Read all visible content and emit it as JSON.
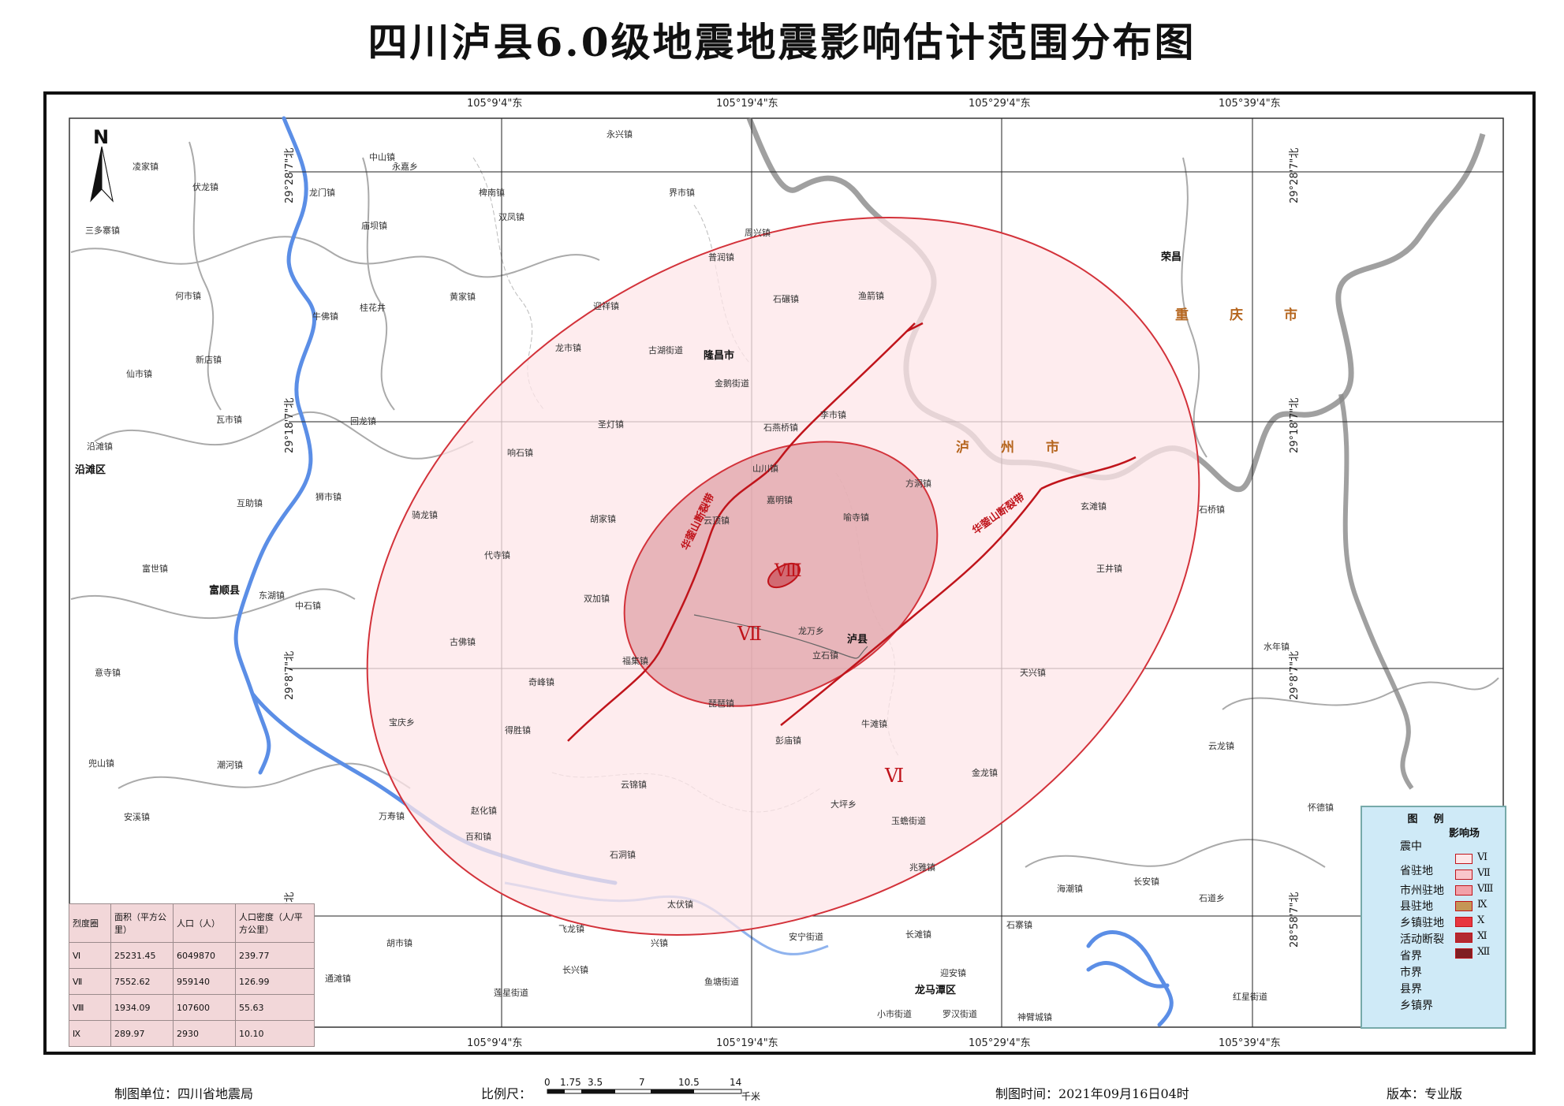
{
  "title": "四川泸县6.0级地震地震影响估计范围分布图",
  "north_label": "N",
  "coords": {
    "top": [
      "105°9'4\"东",
      "105°19'4\"东",
      "105°29'4\"东",
      "105°39'4\"东"
    ],
    "bottom": [
      "105°9'4\"东",
      "105°19'4\"东",
      "105°29'4\"东",
      "105°39'4\"东"
    ],
    "left": [
      "29°28'7\"北",
      "29°18'7\"北",
      "29°8'7\"北",
      "28°58'7\"北"
    ],
    "right": [
      "29°28'7\"北",
      "29°18'7\"北",
      "29°8'7\"北",
      "28°58'7\"北"
    ]
  },
  "places": {
    "towns": [
      "中山镇",
      "永兴镇",
      "凌家镇",
      "伏龙镇",
      "龙门镇",
      "椑南镇",
      "界市镇",
      "永嘉乡",
      "三多寨镇",
      "双凤镇",
      "庙坝镇",
      "周兴镇",
      "普润镇",
      "何市镇",
      "黄家镇",
      "桂花井",
      "牛佛镇",
      "迎祥镇",
      "石碾镇",
      "渔箭镇",
      "龙市镇",
      "古湖街道",
      "新店镇",
      "金鹅街道",
      "仙市镇",
      "瓦市镇",
      "回龙镇",
      "圣灯镇",
      "李市镇",
      "石燕桥镇",
      "沿滩镇",
      "响石镇",
      "山川镇",
      "方洞镇",
      "嘉明镇",
      "互助镇",
      "狮市镇",
      "骑龙镇",
      "胡家镇",
      "云顶镇",
      "喻寺镇",
      "代寺镇",
      "玄滩镇",
      "石桥镇",
      "王井镇",
      "富世镇",
      "东湖镇",
      "中石镇",
      "双加镇",
      "玉蟾街道",
      "龙万乡",
      "古佛镇",
      "福集镇",
      "立石镇",
      "水年镇",
      "意寺镇",
      "奇峰镇",
      "天兴镇",
      "琵琶镇",
      "宝庆乡",
      "得胜镇",
      "牛滩镇",
      "彭庙镇",
      "兜山镇",
      "潮河镇",
      "云锦镇",
      "云龙镇",
      "金龙镇",
      "大坪乡",
      "安溪镇",
      "万寿镇",
      "赵化镇",
      "百和镇",
      "怀德镇",
      "石洞镇",
      "兆雅镇",
      "长安镇",
      "海潮镇",
      "太伏镇",
      "石道乡",
      "飞龙镇",
      "胡市镇",
      "安宁街道",
      "长滩镇",
      "兴镇",
      "石寨镇",
      "长兴镇",
      "通滩镇",
      "鱼塘街道",
      "迎安镇",
      "莲星街道",
      "小市街道",
      "罗汉街道",
      "神臂城镇",
      "红星街道"
    ],
    "counties": [
      "隆昌市",
      "沿滩区",
      "富顺县",
      "泸县",
      "荣昌",
      "龙马潭区"
    ],
    "provinces": [
      "重庆市",
      "泸州市"
    ]
  },
  "epicenter_label": "Ⅷ",
  "intensity_labels": [
    "Ⅶ",
    "Ⅵ"
  ],
  "fault_labels": [
    "华蓥山断裂带",
    "华蓥山断裂带"
  ],
  "legend": {
    "title": "图例",
    "symbols": [
      "震中",
      "省驻地",
      "市州驻地",
      "县驻地",
      "乡镇驻地",
      "活动断裂",
      "省界",
      "市界",
      "县界",
      "乡镇界"
    ],
    "field_title": "影响场",
    "intensities": [
      "Ⅵ",
      "Ⅶ",
      "Ⅷ",
      "Ⅸ",
      "Ⅹ",
      "Ⅺ",
      "Ⅻ"
    ],
    "colors": [
      "#fde6e8",
      "#f9c6cb",
      "#f2a2a9",
      "#c59656",
      "#e8363f",
      "#b32a31",
      "#7f1f23"
    ]
  },
  "table": {
    "headers": [
      "烈度圈",
      "面积（平方公里）",
      "人口（人）",
      "人口密度（人/平方公里）"
    ],
    "rows": [
      [
        "Ⅵ",
        "25231.45",
        "6049870",
        "239.77"
      ],
      [
        "Ⅶ",
        "7552.62",
        "959140",
        "126.99"
      ],
      [
        "Ⅷ",
        "1934.09",
        "107600",
        "55.63"
      ],
      [
        "Ⅸ",
        "289.97",
        "2930",
        "10.10"
      ]
    ]
  },
  "footer": {
    "maker": "制图单位：四川省地震局",
    "scale_label": "比例尺：",
    "scale_ticks": [
      "0",
      "1.75",
      "3.5",
      "7",
      "10.5",
      "14"
    ],
    "scale_unit": "千米",
    "time": "制图时间：2021年09月16日04时",
    "version": "版本：专业版"
  },
  "colors": {
    "zone_vi": "#fde6e8",
    "zone_vii": "#e8aeb2",
    "zone_viii": "#cf6b73",
    "border": "#c0141b",
    "river": "#5b8ee6"
  }
}
